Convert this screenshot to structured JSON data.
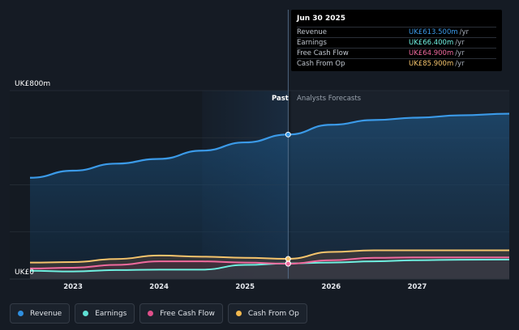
{
  "tooltip": {
    "date": "Jun 30 2025",
    "rows": [
      {
        "label": "Revenue",
        "value": "UK£613.500m",
        "unit": "/yr",
        "color": "#3b9ae8"
      },
      {
        "label": "Earnings",
        "value": "UK£66.400m",
        "unit": "/yr",
        "color": "#6ff0e0"
      },
      {
        "label": "Free Cash Flow",
        "value": "UK£64.900m",
        "unit": "/yr",
        "color": "#f06a9e"
      },
      {
        "label": "Cash From Op",
        "value": "UK£85.900m",
        "unit": "/yr",
        "color": "#f5c46c"
      }
    ]
  },
  "legend": [
    {
      "label": "Revenue",
      "color": "#2f8fe0"
    },
    {
      "label": "Earnings",
      "color": "#5fe0d4"
    },
    {
      "label": "Free Cash Flow",
      "color": "#e04f8a"
    },
    {
      "label": "Cash From Op",
      "color": "#f2b84e"
    }
  ],
  "labels": {
    "past": "Past",
    "forecast": "Analysts Forecasts"
  },
  "chart_data": {
    "type": "line",
    "ylim": [
      0,
      800
    ],
    "y_tick_labels": [
      "UK£800m",
      "UK£0"
    ],
    "x_ticks": [
      {
        "label": "2023",
        "x": 2023.0
      },
      {
        "label": "2024",
        "x": 2024.0
      },
      {
        "label": "2025",
        "x": 2025.0
      },
      {
        "label": "2026",
        "x": 2026.0
      },
      {
        "label": "2027",
        "x": 2027.0
      }
    ],
    "xlim": [
      2022.5,
      2028.07
    ],
    "past_forecast_divider": 2025.5,
    "highlight_start": 2024.5,
    "series": [
      {
        "name": "Revenue",
        "color": "#3b9ae8",
        "x": [
          2022.5,
          2023.0,
          2023.5,
          2024.0,
          2024.5,
          2025.0,
          2025.5,
          2026.0,
          2026.5,
          2027.0,
          2027.5,
          2028.07
        ],
        "values": [
          430,
          460,
          490,
          510,
          545,
          580,
          613.5,
          655,
          675,
          685,
          695,
          702
        ]
      },
      {
        "name": "Earnings",
        "color": "#6ff0e0",
        "x": [
          2022.5,
          2023.0,
          2023.5,
          2024.0,
          2024.5,
          2025.0,
          2025.5,
          2026.0,
          2026.5,
          2027.0,
          2027.5,
          2028.07
        ],
        "values": [
          35,
          32,
          38,
          40,
          40,
          60,
          66.4,
          70,
          75,
          80,
          82,
          83
        ]
      },
      {
        "name": "Free Cash Flow",
        "color": "#f06a9e",
        "x": [
          2022.5,
          2023.0,
          2023.5,
          2024.0,
          2024.5,
          2025.0,
          2025.5,
          2026.0,
          2026.5,
          2027.0,
          2027.5,
          2028.07
        ],
        "values": [
          45,
          48,
          60,
          75,
          75,
          70,
          64.9,
          80,
          90,
          92,
          92,
          92
        ]
      },
      {
        "name": "Cash From Op",
        "color": "#f5c46c",
        "x": [
          2022.5,
          2023.0,
          2023.5,
          2024.0,
          2024.5,
          2025.0,
          2025.5,
          2026.0,
          2026.5,
          2027.0,
          2027.5,
          2028.07
        ],
        "values": [
          70,
          72,
          85,
          100,
          95,
          90,
          85.9,
          115,
          122,
          122,
          122,
          122
        ]
      }
    ]
  }
}
